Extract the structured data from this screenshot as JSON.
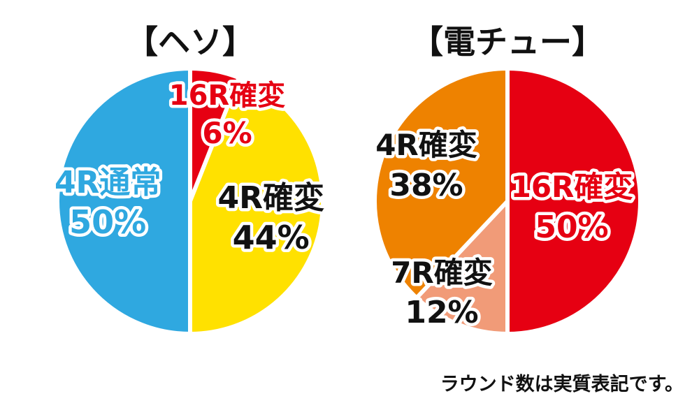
{
  "chart_data": [
    {
      "type": "pie",
      "title": "【ヘソ】",
      "slices": [
        {
          "label": "16R確変",
          "value": 6,
          "value_text": "6%",
          "color": "#e60012",
          "text_color": "#e60012"
        },
        {
          "label": "4R確変",
          "value": 44,
          "value_text": "44%",
          "color": "#ffe100",
          "text_color": "#111111"
        },
        {
          "label": "4R通常",
          "value": 50,
          "value_text": "50%",
          "color": "#2fa8e0",
          "text_color": "#2fa8e0"
        }
      ]
    },
    {
      "type": "pie",
      "title": "【電チュー】",
      "slices": [
        {
          "label": "16R確変",
          "value": 50,
          "value_text": "50%",
          "color": "#e60012",
          "text_color": "#e60012"
        },
        {
          "label": "7R確変",
          "value": 12,
          "value_text": "12%",
          "color": "#f19b78",
          "text_color": "#111111"
        },
        {
          "label": "4R確変",
          "value": 38,
          "value_text": "38%",
          "color": "#ee8200",
          "text_color": "#111111"
        }
      ]
    }
  ],
  "footnote": "ラウンド数は実質表記です。"
}
